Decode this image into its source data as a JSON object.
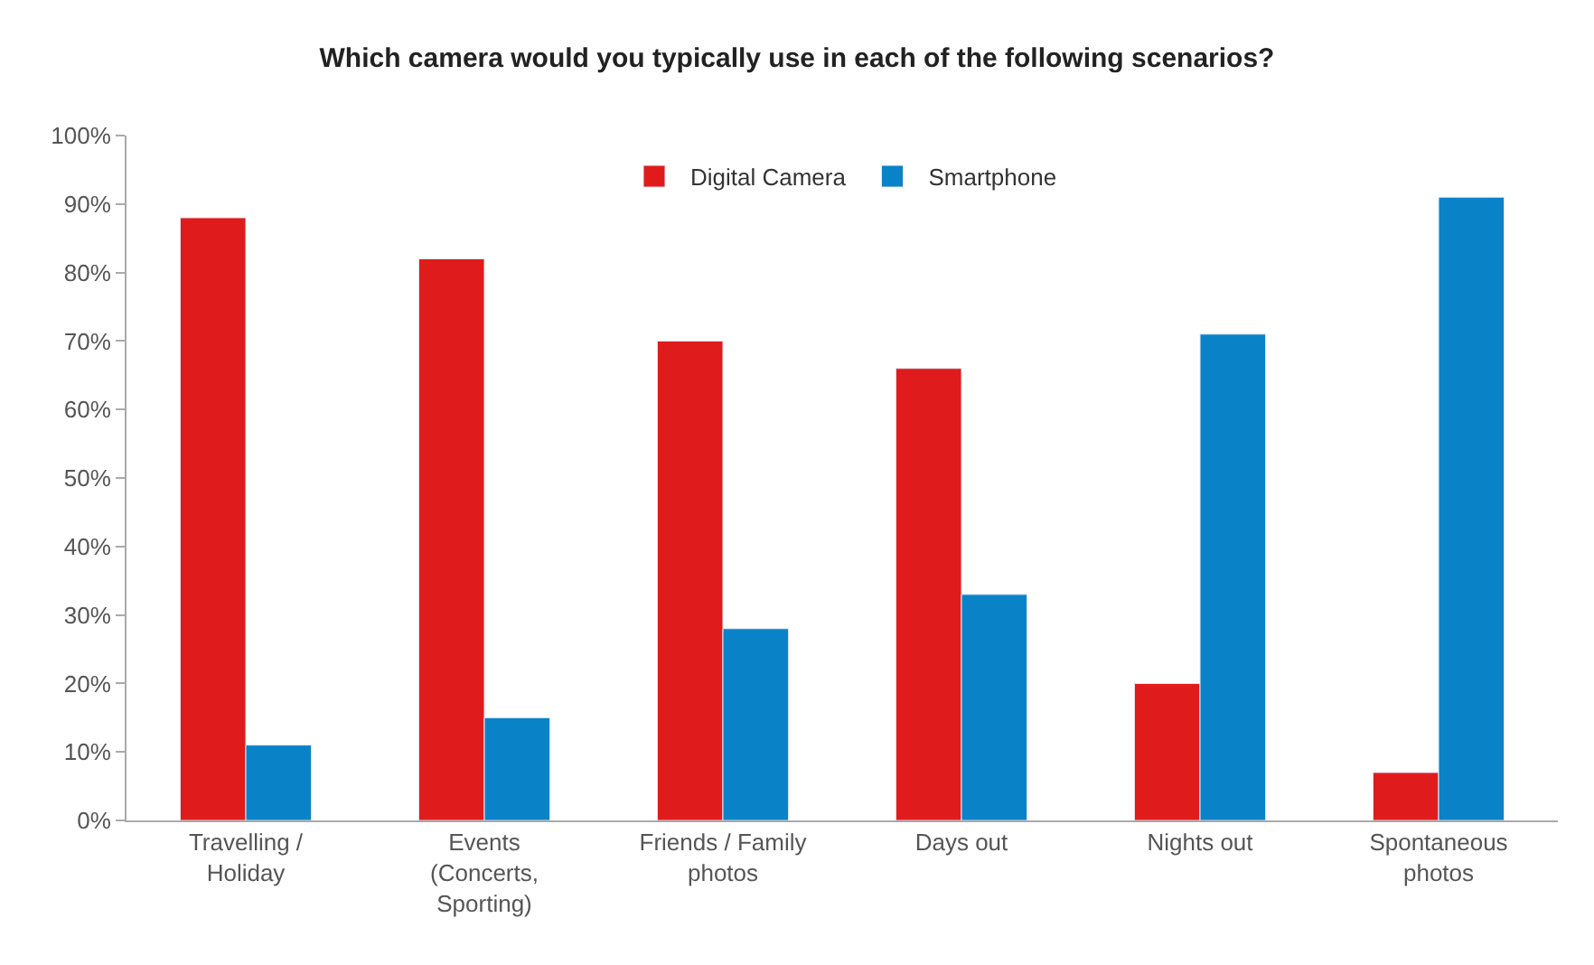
{
  "chart_data": {
    "type": "bar",
    "title": "Which camera would you typically use in each of the following scenarios?",
    "categories": [
      "Travelling /\nHoliday",
      "Events\n(Concerts,\nSporting)",
      "Friends / Family\nphotos",
      "Days out",
      "Nights out",
      "Spontaneous\nphotos"
    ],
    "series": [
      {
        "name": "Digital Camera",
        "color": "#e01b1b",
        "values": [
          88,
          82,
          70,
          66,
          20,
          7
        ]
      },
      {
        "name": "Smartphone",
        "color": "#0a82c8",
        "values": [
          11,
          15,
          28,
          33,
          71,
          91
        ]
      }
    ],
    "ylim": [
      0,
      100
    ],
    "yticks": [
      {
        "value": 0,
        "label": "0%"
      },
      {
        "value": 10,
        "label": "10%"
      },
      {
        "value": 20,
        "label": "20%"
      },
      {
        "value": 30,
        "label": "30%"
      },
      {
        "value": 40,
        "label": "40%"
      },
      {
        "value": 50,
        "label": "50%"
      },
      {
        "value": 60,
        "label": "60%"
      },
      {
        "value": 70,
        "label": "70%"
      },
      {
        "value": 80,
        "label": "80%"
      },
      {
        "value": 90,
        "label": "90%"
      },
      {
        "value": 100,
        "label": "100%"
      }
    ],
    "grid": false,
    "legend": "top"
  }
}
